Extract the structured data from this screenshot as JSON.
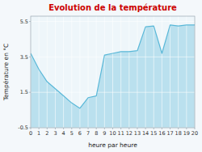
{
  "chart_data": {
    "type": "area",
    "title": "Evolution de la température",
    "x_label": "heure par heure",
    "y_label": "Température en °C",
    "x": [
      0,
      1,
      2,
      3,
      4,
      5,
      6,
      7,
      8,
      9,
      10,
      11,
      12,
      13,
      14,
      15,
      16,
      17,
      18,
      19,
      20
    ],
    "values": [
      3.7,
      2.8,
      2.1,
      1.7,
      1.3,
      0.9,
      0.6,
      1.2,
      1.3,
      3.6,
      3.7,
      3.8,
      3.8,
      3.85,
      5.2,
      5.25,
      3.7,
      5.3,
      5.25,
      5.3,
      5.3
    ],
    "color": "#5ab8d8",
    "xlim": [
      0,
      20
    ],
    "ylim": [
      -0.5,
      5.8
    ],
    "xticks": [
      0,
      1,
      2,
      3,
      4,
      5,
      6,
      7,
      8,
      9,
      10,
      11,
      12,
      13,
      14,
      15,
      16,
      17,
      18,
      19,
      20
    ],
    "yticks": [
      -0.5,
      1.5,
      3.5,
      5.5
    ],
    "grid": true
  }
}
